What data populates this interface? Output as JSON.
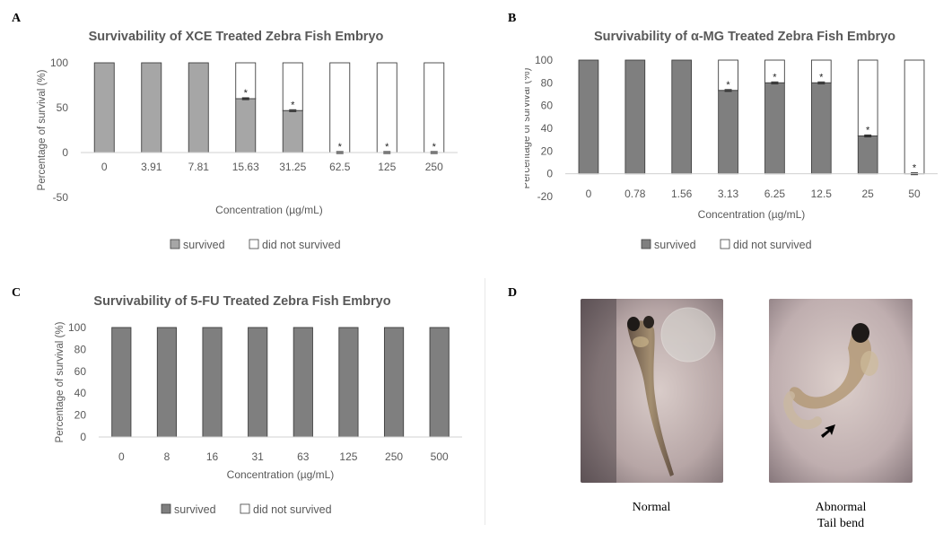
{
  "panels": {
    "a": {
      "letter": "A"
    },
    "b": {
      "letter": "B"
    },
    "c": {
      "letter": "C"
    },
    "d": {
      "letter": "D",
      "captions": {
        "normal": "Normal",
        "abnormal_line1": "Abnormal",
        "abnormal_line2": "Tail bend"
      }
    }
  },
  "colors": {
    "survived_A": "#a6a6a6",
    "survived_BC": "#7f7f7f",
    "not_survived": "#ffffff",
    "bar_outline": "#404040",
    "axis_text": "#595959"
  },
  "chart_data": [
    {
      "id": "A",
      "type": "bar",
      "stacked": true,
      "title": "Survivability of XCE Treated Zebra Fish Embryo",
      "xlabel": "Concentration (µg/mL)",
      "ylabel": "Percentage of survival (%)",
      "ylim": [
        -50,
        100
      ],
      "yticks": [
        -50,
        0,
        50,
        100
      ],
      "categories": [
        "0",
        "3.91",
        "7.81",
        "15.63",
        "31.25",
        "62.5",
        "125",
        "250"
      ],
      "series": [
        {
          "name": "survived",
          "values": [
            100,
            100,
            100,
            60,
            46.7,
            0,
            0,
            0
          ]
        },
        {
          "name": "did not survived",
          "values": [
            0,
            0,
            0,
            40,
            53.3,
            100,
            100,
            100
          ]
        }
      ],
      "significance": [
        "",
        "",
        "",
        "*",
        "*",
        "*",
        "*",
        "*"
      ],
      "legend": "bottom",
      "grid": false
    },
    {
      "id": "B",
      "type": "bar",
      "stacked": true,
      "title": "Survivability of α-MG Treated Zebra Fish Embryo",
      "xlabel": "Concentration (µg/mL)",
      "ylabel": "Percentage of survival (%)",
      "ylim": [
        -20,
        100
      ],
      "yticks": [
        -20,
        0,
        20,
        40,
        60,
        80,
        100
      ],
      "categories": [
        "0",
        "0.78",
        "1.56",
        "3.13",
        "6.25",
        "12.5",
        "25",
        "50"
      ],
      "series": [
        {
          "name": "survived",
          "values": [
            100,
            100,
            100,
            73.3,
            80,
            80,
            33.3,
            0
          ]
        },
        {
          "name": "did not survived",
          "values": [
            0,
            0,
            0,
            26.7,
            20,
            20,
            66.7,
            100
          ]
        }
      ],
      "significance": [
        "",
        "",
        "",
        "*",
        "*",
        "*",
        "*",
        "*"
      ],
      "legend": "bottom",
      "grid": false
    },
    {
      "id": "C",
      "type": "bar",
      "stacked": true,
      "title": "Survivability of 5-FU Treated Zebra Fish Embryo",
      "xlabel": "Concentration (µg/mL)",
      "ylabel": "Percentage of survival (%)",
      "ylim": [
        0,
        100
      ],
      "yticks": [
        0,
        20,
        40,
        60,
        80,
        100
      ],
      "categories": [
        "0",
        "8",
        "16",
        "31",
        "63",
        "125",
        "250",
        "500"
      ],
      "series": [
        {
          "name": "survived",
          "values": [
            100,
            100,
            100,
            100,
            100,
            100,
            100,
            100
          ]
        },
        {
          "name": "did not survived",
          "values": [
            0,
            0,
            0,
            0,
            0,
            0,
            0,
            0
          ]
        }
      ],
      "significance": [
        "",
        "",
        "",
        "",
        "",
        "",
        "",
        ""
      ],
      "legend": "bottom",
      "grid": false
    }
  ]
}
